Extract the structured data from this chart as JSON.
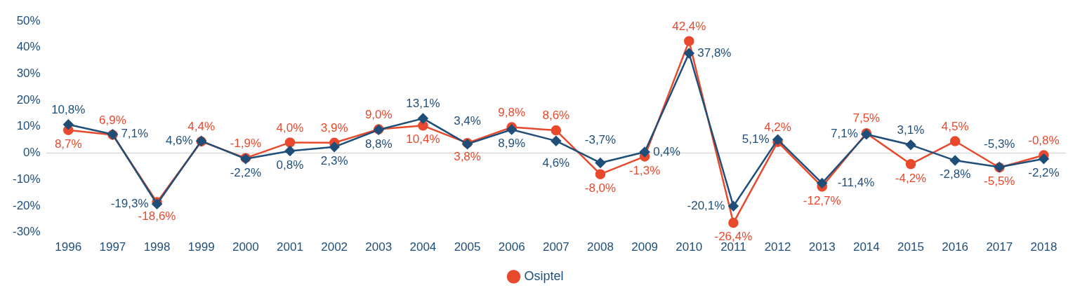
{
  "chart_data": {
    "type": "line",
    "categories": [
      "1996",
      "1997",
      "1998",
      "1999",
      "2000",
      "2001",
      "2002",
      "2003",
      "2004",
      "2005",
      "2006",
      "2007",
      "2008",
      "2009",
      "2010",
      "2011",
      "2012",
      "2013",
      "2014",
      "2015",
      "2016",
      "2017",
      "2018"
    ],
    "series": [
      {
        "name": "Osiptel",
        "color": "#e8492c",
        "marker": "circle",
        "values": [
          8.7,
          6.9,
          -18.6,
          4.4,
          -1.9,
          4.0,
          3.9,
          9.0,
          10.4,
          3.8,
          9.8,
          8.6,
          -8.0,
          -1.3,
          42.4,
          -26.4,
          4.2,
          -12.7,
          7.5,
          -4.2,
          4.5,
          -5.5,
          -0.8
        ],
        "value_labels": [
          "8,7%",
          "6,9%",
          "-18,6%",
          "4,4%",
          "-1,9%",
          "4,0%",
          "3,9%",
          "9,0%",
          "10,4%",
          "3,8%",
          "9,8%",
          "8,6%",
          "-8,0%",
          "-1,3%",
          "42,4%",
          "-26,4%",
          "4,2%",
          "-12,7%",
          "7,5%",
          "-4,2%",
          "4,5%",
          "-5,5%",
          "-0,8%"
        ]
      },
      {
        "color": "#1f4e79",
        "marker": "diamond",
        "values": [
          10.8,
          7.1,
          -19.3,
          4.6,
          -2.2,
          0.8,
          2.3,
          8.8,
          13.1,
          3.4,
          8.9,
          4.6,
          -3.7,
          0.4,
          37.8,
          -20.1,
          5.1,
          -11.4,
          7.1,
          3.1,
          -2.8,
          -5.3,
          -2.2
        ],
        "value_labels": [
          "10,8%",
          "7,1%",
          "-19,3%",
          "4,6%",
          "-2,2%",
          "0,8%",
          "2,3%",
          "8,8%",
          "13,1%",
          "3,4%",
          "8,9%",
          "4,6%",
          "-3,7%",
          "0,4%",
          "37,8%",
          "-20,1%",
          "5,1%",
          "-11,4%",
          "7,1%",
          "3,1%",
          "-2,8%",
          "-5,3%",
          "-2,2%"
        ]
      }
    ],
    "ylim": [
      -30,
      50
    ],
    "yticks": [
      {
        "value": -30,
        "label": "-30%"
      },
      {
        "value": -20,
        "label": "-20%"
      },
      {
        "value": -10,
        "label": "-10%"
      },
      {
        "value": 0,
        "label": "0%"
      },
      {
        "value": 10,
        "label": "10%"
      },
      {
        "value": 20,
        "label": "20%"
      },
      {
        "value": 30,
        "label": "30%"
      },
      {
        "value": 40,
        "label": "40%"
      },
      {
        "value": 50,
        "label": "50%"
      }
    ],
    "ref_lines": [
      {
        "axis": "y",
        "value": 0,
        "color": "#d9d9d9"
      }
    ],
    "grid": false,
    "legend": "bottom",
    "line_style": "solid"
  }
}
